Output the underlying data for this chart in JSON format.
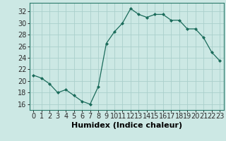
{
  "x": [
    0,
    1,
    2,
    3,
    4,
    5,
    6,
    7,
    8,
    9,
    10,
    11,
    12,
    13,
    14,
    15,
    16,
    17,
    18,
    19,
    20,
    21,
    22,
    23
  ],
  "y": [
    21,
    20.5,
    19.5,
    18,
    18.5,
    17.5,
    16.5,
    16,
    19,
    26.5,
    28.5,
    30,
    32.5,
    31.5,
    31,
    31.5,
    31.5,
    30.5,
    30.5,
    29,
    29,
    27.5,
    25,
    23.5
  ],
  "line_color": "#1a6b5a",
  "marker_color": "#1a6b5a",
  "bg_color": "#cce8e4",
  "grid_color": "#aacfcb",
  "xlabel": "Humidex (Indice chaleur)",
  "ylim": [
    15,
    33.5
  ],
  "xlim": [
    -0.5,
    23.5
  ],
  "yticks": [
    16,
    18,
    20,
    22,
    24,
    26,
    28,
    30,
    32
  ],
  "xticks": [
    0,
    1,
    2,
    3,
    4,
    5,
    6,
    7,
    8,
    9,
    10,
    11,
    12,
    13,
    14,
    15,
    16,
    17,
    18,
    19,
    20,
    21,
    22,
    23
  ],
  "xlabel_fontsize": 8,
  "tick_fontsize": 7
}
